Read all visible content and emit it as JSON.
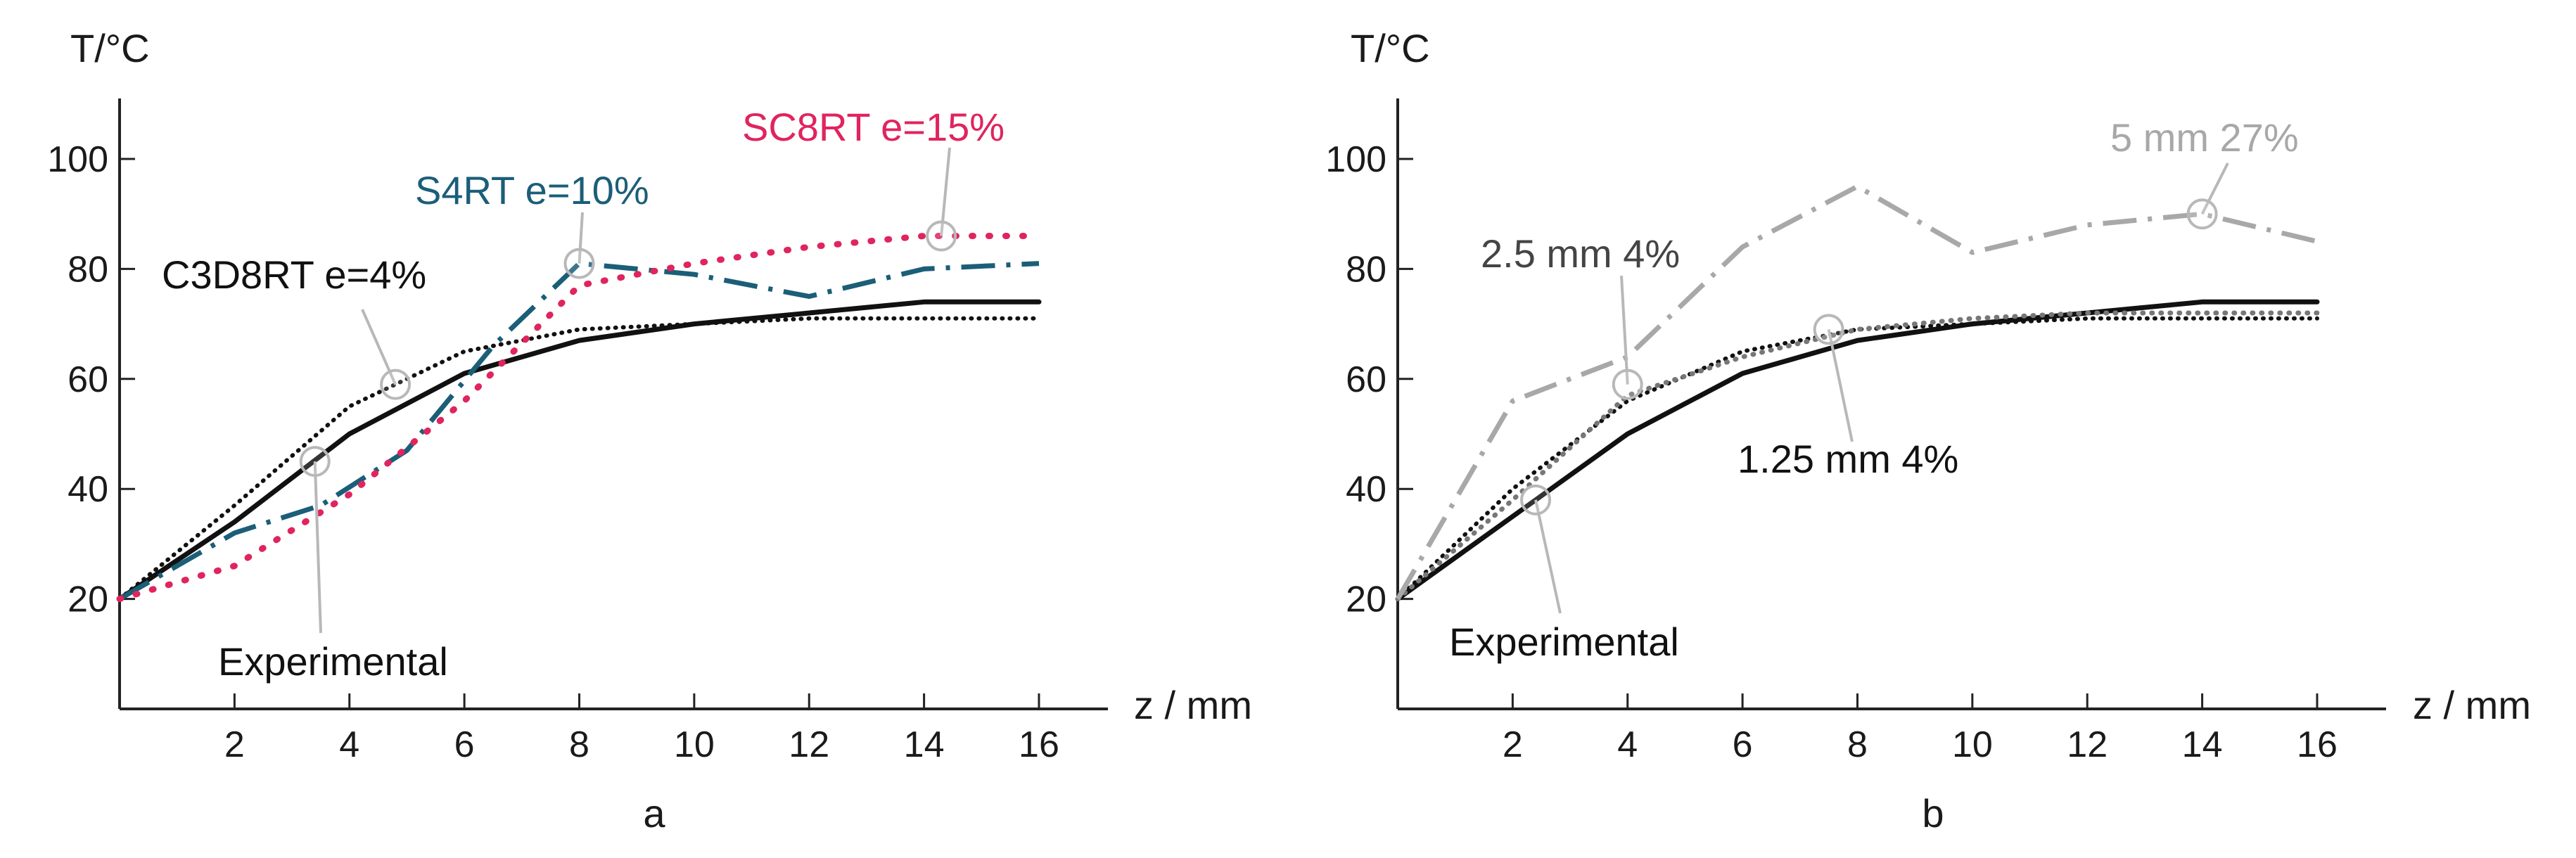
{
  "figure": {
    "panel_labels": [
      "a",
      "b"
    ]
  },
  "chart_data": [
    {
      "type": "line",
      "panel": "a",
      "ylabel": "T/°C",
      "xlabel": "z / mm",
      "xlim": [
        0,
        17.2
      ],
      "ylim": [
        0,
        111
      ],
      "xticks": [
        2,
        4,
        6,
        8,
        10,
        12,
        14,
        16
      ],
      "yticks": [
        20,
        40,
        60,
        80,
        100
      ],
      "series": [
        {
          "name": "Experimental",
          "style": "solid",
          "color": "#111111",
          "x": [
            0,
            2,
            4,
            6,
            8,
            10,
            12,
            14,
            16
          ],
          "y": [
            20,
            34,
            50,
            61,
            67,
            70,
            72,
            74,
            74
          ]
        },
        {
          "name": "C3D8RT e=4%",
          "style": "dotted",
          "color": "#111111",
          "x": [
            0,
            2,
            4,
            6,
            8,
            10,
            12,
            14,
            16
          ],
          "y": [
            20,
            37,
            55,
            65,
            69,
            70,
            71,
            71,
            71
          ]
        },
        {
          "name": "S4RT e=10%",
          "style": "dashdot",
          "color": "#1b5e78",
          "x": [
            0,
            2,
            3.5,
            5,
            6.5,
            8,
            10,
            12,
            14,
            16
          ],
          "y": [
            20,
            32,
            37,
            47,
            66,
            81,
            79,
            75,
            80,
            81
          ]
        },
        {
          "name": "SC8RT e=15%",
          "style": "dotted-coarse",
          "color": "#e0245e",
          "x": [
            0,
            2,
            4,
            6,
            8,
            10,
            12,
            14,
            16
          ],
          "y": [
            20,
            26,
            39,
            56,
            77,
            81,
            84,
            86,
            86
          ]
        }
      ],
      "annotations": [
        {
          "text": "SC8RT e=15%",
          "color": "#e0245e",
          "point": [
            14.3,
            86
          ]
        },
        {
          "text": "S4RT e=10%",
          "color": "#1b5e78",
          "point": [
            8,
            81
          ]
        },
        {
          "text": "C3D8RT e=4%",
          "color": "#111111",
          "point": [
            4.8,
            59
          ]
        },
        {
          "text": "Experimental",
          "color": "#111111",
          "point": [
            3.4,
            45
          ]
        }
      ]
    },
    {
      "type": "line",
      "panel": "b",
      "ylabel": "T/°C",
      "xlabel": "z / mm",
      "xlim": [
        0,
        17.2
      ],
      "ylim": [
        0,
        111
      ],
      "xticks": [
        2,
        4,
        6,
        8,
        10,
        12,
        14,
        16
      ],
      "yticks": [
        20,
        40,
        60,
        80,
        100
      ],
      "series": [
        {
          "name": "Experimental",
          "style": "solid",
          "color": "#111111",
          "x": [
            0,
            2,
            4,
            6,
            8,
            10,
            12,
            14,
            16
          ],
          "y": [
            20,
            35,
            50,
            61,
            67,
            70,
            72,
            74,
            74
          ]
        },
        {
          "name": "1.25 mm 4%",
          "style": "dotted",
          "color": "#111111",
          "x": [
            0,
            2,
            4,
            6,
            8,
            10,
            12,
            14,
            16
          ],
          "y": [
            20,
            40,
            56,
            65,
            69,
            70,
            71,
            71,
            71
          ]
        },
        {
          "name": "2.5 mm 4%",
          "style": "dotted-gray",
          "color": "#777777",
          "x": [
            0,
            2,
            4,
            6,
            8,
            10,
            12,
            14,
            16
          ],
          "y": [
            20,
            38,
            57,
            64,
            69,
            71,
            72,
            72,
            72
          ]
        },
        {
          "name": "5 mm 27%",
          "style": "dashdot",
          "color": "#a8a8a8",
          "x": [
            0,
            2,
            4,
            6,
            8,
            10,
            12,
            14,
            16
          ],
          "y": [
            20,
            56,
            64,
            84,
            95,
            83,
            88,
            90,
            85
          ]
        }
      ],
      "annotations": [
        {
          "text": "5 mm 27%",
          "color": "#a8a8a8",
          "point": [
            14,
            90
          ]
        },
        {
          "text": "2.5 mm 4%",
          "color": "#444444",
          "point": [
            4,
            59
          ]
        },
        {
          "text": "1.25 mm 4%",
          "color": "#111111",
          "point": [
            7.5,
            69
          ]
        },
        {
          "text": "Experimental",
          "color": "#111111",
          "point": [
            2.4,
            38
          ]
        }
      ]
    }
  ]
}
